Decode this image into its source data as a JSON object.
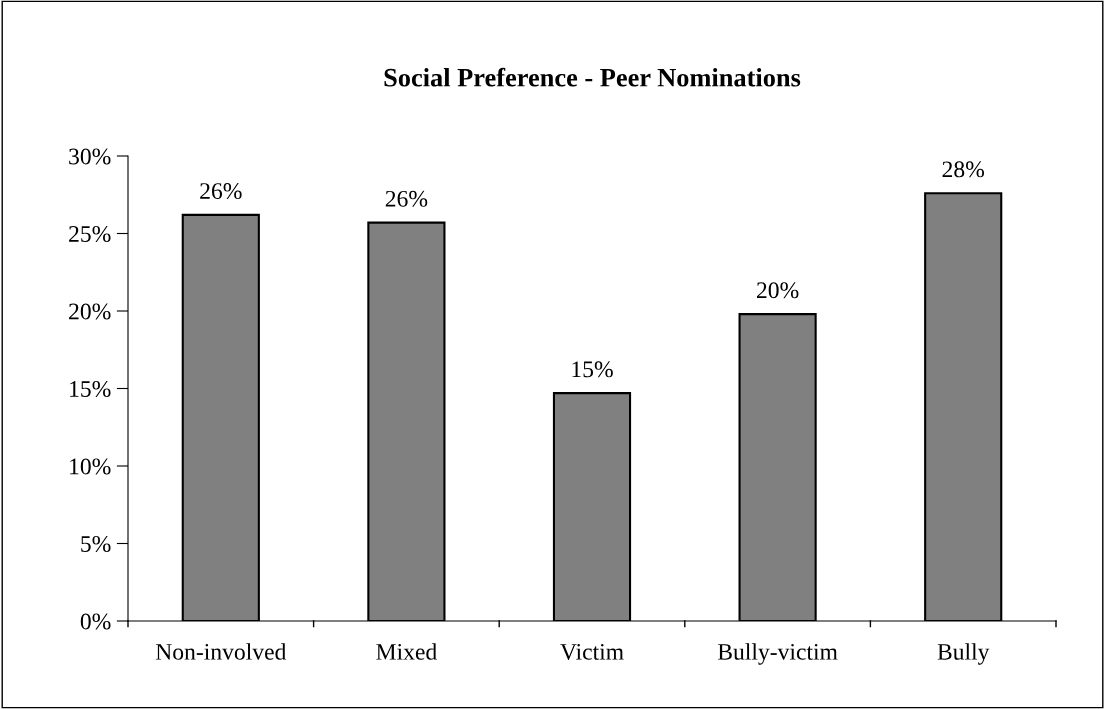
{
  "chart_data": {
    "type": "bar",
    "title": "Social Preference - Peer Nominations",
    "categories": [
      "Non-involved",
      "Mixed",
      "Victim",
      "Bully-victim",
      "Bully"
    ],
    "values": [
      26.2,
      25.7,
      14.7,
      19.8,
      27.6
    ],
    "value_labels": [
      "26%",
      "26%",
      "15%",
      "20%",
      "28%"
    ],
    "color": "#808080",
    "ylim": [
      0,
      30
    ],
    "yticks": [
      {
        "value": 0,
        "label": "0%"
      },
      {
        "value": 5,
        "label": "5%"
      },
      {
        "value": 10,
        "label": "10%"
      },
      {
        "value": 15,
        "label": "15%"
      },
      {
        "value": 20,
        "label": "20%"
      },
      {
        "value": 25,
        "label": "25%"
      },
      {
        "value": 30,
        "label": "30%"
      }
    ],
    "grid": false,
    "legend": false
  }
}
